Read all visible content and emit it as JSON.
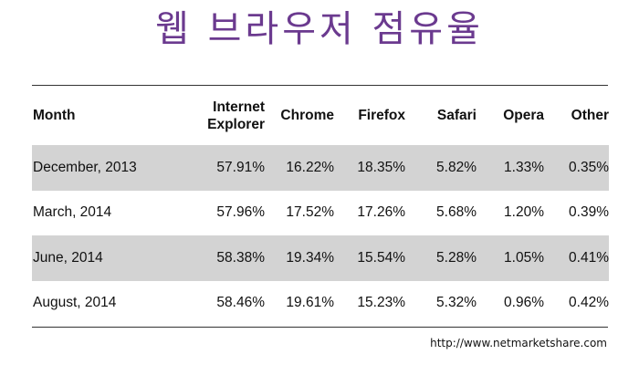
{
  "title": "웹 브라우저 점유율",
  "table": {
    "headers": [
      "Month",
      "Internet Explorer",
      "Chrome",
      "Firefox",
      "Safari",
      "Opera",
      "Other"
    ],
    "header_lines": {
      "ie_line1": "Internet",
      "ie_line2": "Explorer"
    },
    "rows": [
      {
        "month": "December, 2013",
        "ie": "57.91%",
        "chrome": "16.22%",
        "firefox": "18.35%",
        "safari": "5.82%",
        "opera": "1.33%",
        "other": "0.35%"
      },
      {
        "month": "March, 2014",
        "ie": "57.96%",
        "chrome": "17.52%",
        "firefox": "17.26%",
        "safari": "5.68%",
        "opera": "1.20%",
        "other": "0.39%"
      },
      {
        "month": "June, 2014",
        "ie": "58.38%",
        "chrome": "19.34%",
        "firefox": "15.54%",
        "safari": "5.28%",
        "opera": "1.05%",
        "other": "0.41%"
      },
      {
        "month": "August, 2014",
        "ie": "58.46%",
        "chrome": "19.61%",
        "firefox": "15.23%",
        "safari": "5.32%",
        "opera": "0.96%",
        "other": "0.42%"
      }
    ],
    "row_shading": [
      "shaded",
      "plain",
      "shaded",
      "plain"
    ],
    "shade_color": "#d3d3d3"
  },
  "source": "http://www.netmarketshare.com",
  "colors": {
    "title": "#6b3a8f",
    "text": "#111111",
    "rule": "#333333"
  }
}
